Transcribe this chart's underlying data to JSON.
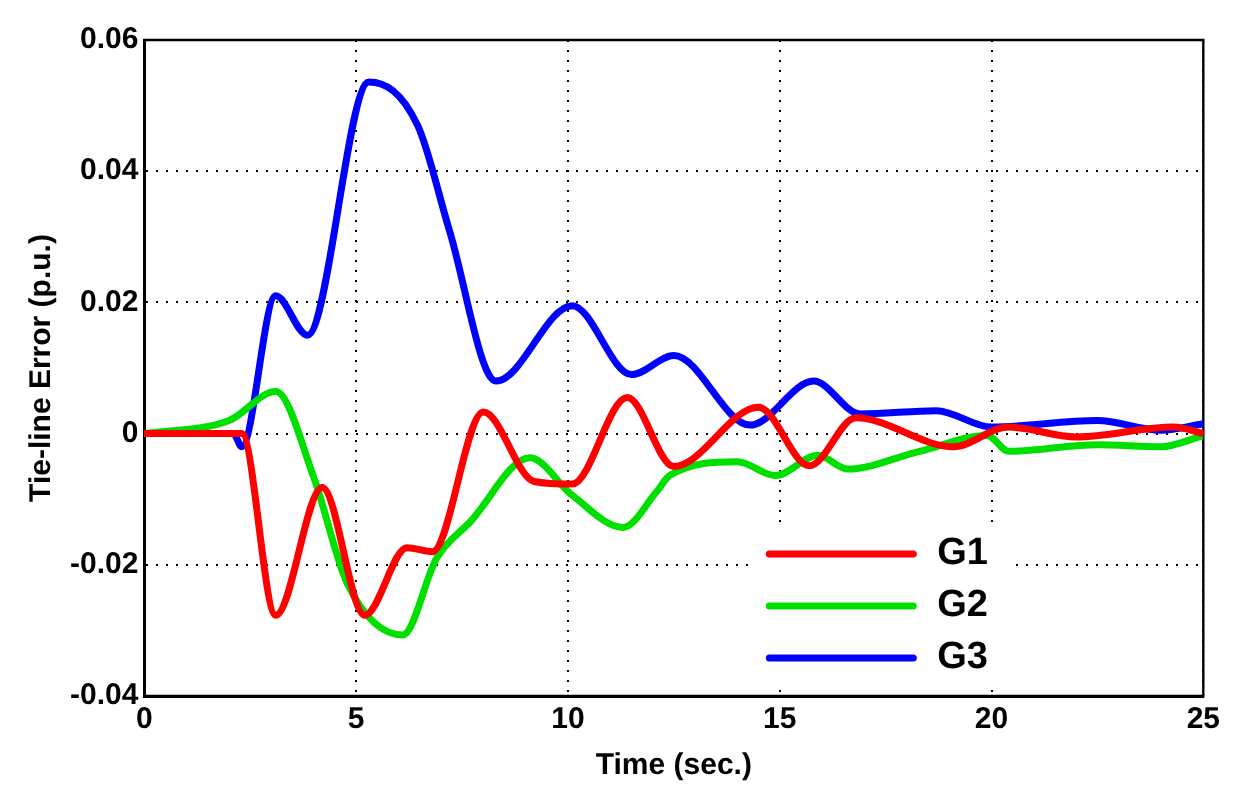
{
  "chart_data": {
    "type": "line",
    "xlabel": "Time (sec.)",
    "ylabel": "Tie-line Error (p.u.)",
    "xlim": [
      0,
      25
    ],
    "xticks": [
      0,
      5,
      10,
      15,
      20,
      25
    ],
    "ylim": [
      -0.04,
      0.06
    ],
    "yticks": [
      -0.04,
      -0.02,
      0,
      0.02,
      0.04,
      0.06
    ],
    "grid": true,
    "legend": "bottom right",
    "line_style": "solid",
    "marker": "none",
    "series": [
      {
        "name": "G1",
        "color": "#ff0000",
        "x": [
          0,
          2.2,
          2.3,
          3.1,
          4.2,
          5.2,
          6.2,
          6.8,
          8.0,
          9.2,
          10.1,
          11.4,
          12.5,
          14.5,
          15.7,
          16.8,
          19.1,
          20.4,
          22,
          24.3,
          25
        ],
        "values": [
          0,
          0,
          0,
          -0.0277,
          -0.0082,
          -0.0277,
          -0.0174,
          -0.018,
          0.0033,
          -0.0073,
          -0.0077,
          0.0055,
          -0.005,
          0.004,
          -0.0049,
          0.0024,
          -0.002,
          0.001,
          -0.0005,
          0.001,
          0
        ]
      },
      {
        "name": "G2",
        "color": "#00e000",
        "x": [
          0,
          2.0,
          3.1,
          4.0,
          4.8,
          6.1,
          6.9,
          7.7,
          9.1,
          10.1,
          11.3,
          12.1,
          12.4,
          14,
          14.9,
          15.9,
          16.6,
          18.3,
          19.9,
          20.4,
          22.5,
          24,
          25
        ],
        "values": [
          0,
          0.002,
          0.0064,
          -0.0067,
          -0.023,
          -0.0307,
          -0.019,
          -0.0134,
          -0.0037,
          -0.0094,
          -0.0143,
          -0.0088,
          -0.0064,
          -0.0043,
          -0.0064,
          -0.0033,
          -0.0054,
          -0.0027,
          -0.0003,
          -0.0027,
          -0.0017,
          -0.002,
          -0.0003
        ]
      },
      {
        "name": "G3",
        "color": "#0000ff",
        "x": [
          0,
          2.1,
          2.3,
          3.1,
          3.85,
          5.3,
          6.45,
          7.2,
          8.3,
          10.1,
          11.5,
          12.5,
          14.3,
          15.8,
          16.9,
          18.7,
          20,
          22.5,
          24,
          25
        ],
        "values": [
          0,
          0,
          -0.002,
          0.021,
          0.015,
          0.0536,
          0.047,
          0.031,
          0.008,
          0.0195,
          0.009,
          0.0119,
          0.0013,
          0.008,
          0.003,
          0.0035,
          0.001,
          0.002,
          0.0005,
          0.0015
        ]
      }
    ]
  }
}
